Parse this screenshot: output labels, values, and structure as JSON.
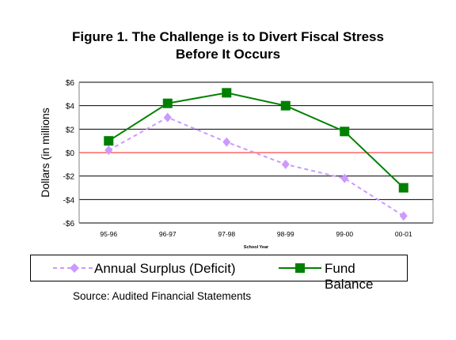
{
  "title_line1": "Figure 1.  The Challenge is to Divert Fiscal Stress",
  "title_line2": "Before It Occurs",
  "source": "Source: Audited Financial Statements",
  "legend": {
    "annual_surplus": "Annual Surplus (Deficit)",
    "fund_balance": "Fund Balance"
  },
  "colors": {
    "annual_surplus": "#cc99ff",
    "fund_balance": "#008000",
    "zero_line": "#ff6666"
  },
  "chart_data": {
    "type": "line",
    "title": "Figure 1.  The Challenge is to Divert Fiscal Stress Before It Occurs",
    "xlabel": "School Year",
    "ylabel": "Dollars (in millions",
    "categories": [
      "95-96",
      "96-97",
      "97-98",
      "98-99",
      "99-00",
      "00-01"
    ],
    "ylim": [
      -6,
      6
    ],
    "yticks": [
      6,
      4,
      2,
      0,
      -2,
      -4,
      -6
    ],
    "ytick_labels": [
      "$6",
      "$4",
      "$2",
      "$0",
      "-$2",
      "-$4",
      "-$6"
    ],
    "grid": true,
    "legend_position": "bottom",
    "series": [
      {
        "name": "Annual Surplus (Deficit)",
        "values": [
          0.2,
          3.0,
          0.9,
          -1.0,
          -2.2,
          -5.4
        ],
        "style": "dashed",
        "marker": "diamond"
      },
      {
        "name": "Fund Balance",
        "values": [
          1.0,
          4.2,
          5.1,
          4.0,
          1.8,
          -3.0
        ],
        "style": "solid",
        "marker": "square"
      }
    ]
  }
}
